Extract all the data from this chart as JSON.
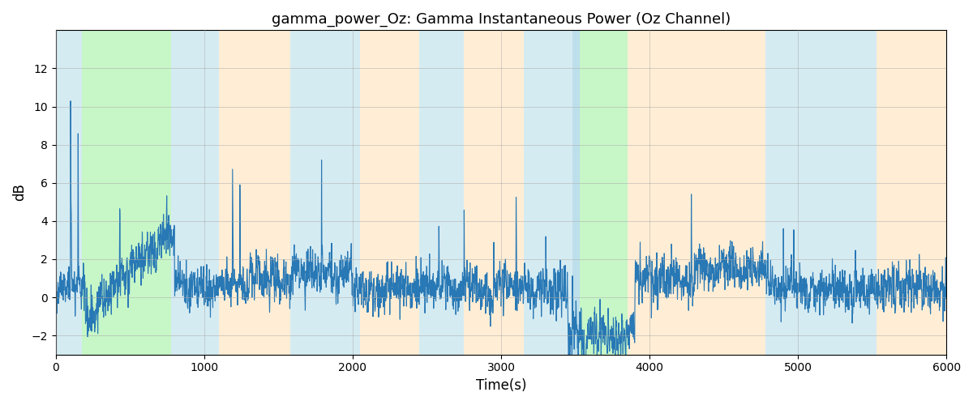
{
  "title": "gamma_power_Oz: Gamma Instantaneous Power (Oz Channel)",
  "xlabel": "Time(s)",
  "ylabel": "dB",
  "xlim": [
    0,
    6000
  ],
  "ylim": [
    -3,
    14
  ],
  "yticks": [
    -2,
    0,
    2,
    4,
    6,
    8,
    10,
    12
  ],
  "xticks": [
    0,
    1000,
    2000,
    3000,
    4000,
    5000,
    6000
  ],
  "line_color": "#2878b5",
  "line_width": 0.8,
  "background_color": "#ffffff",
  "figsize": [
    12,
    5
  ],
  "dpi": 100,
  "regions": [
    {
      "start": 0,
      "end": 175,
      "color": "#add8e6",
      "alpha": 0.5
    },
    {
      "start": 175,
      "end": 780,
      "color": "#90ee90",
      "alpha": 0.5
    },
    {
      "start": 780,
      "end": 1100,
      "color": "#add8e6",
      "alpha": 0.5
    },
    {
      "start": 1100,
      "end": 1580,
      "color": "#ffdead",
      "alpha": 0.5
    },
    {
      "start": 1580,
      "end": 2050,
      "color": "#add8e6",
      "alpha": 0.5
    },
    {
      "start": 2050,
      "end": 2450,
      "color": "#ffdead",
      "alpha": 0.5
    },
    {
      "start": 2450,
      "end": 2750,
      "color": "#add8e6",
      "alpha": 0.5
    },
    {
      "start": 2750,
      "end": 3150,
      "color": "#ffdead",
      "alpha": 0.5
    },
    {
      "start": 3150,
      "end": 3480,
      "color": "#add8e6",
      "alpha": 0.5
    },
    {
      "start": 3480,
      "end": 3530,
      "color": "#add8e6",
      "alpha": 0.8
    },
    {
      "start": 3530,
      "end": 3850,
      "color": "#90ee90",
      "alpha": 0.5
    },
    {
      "start": 3850,
      "end": 4250,
      "color": "#ffdead",
      "alpha": 0.5
    },
    {
      "start": 4250,
      "end": 4780,
      "color": "#ffdead",
      "alpha": 0.5
    },
    {
      "start": 4780,
      "end": 5150,
      "color": "#add8e6",
      "alpha": 0.5
    },
    {
      "start": 5150,
      "end": 5530,
      "color": "#add8e6",
      "alpha": 0.5
    },
    {
      "start": 5530,
      "end": 6000,
      "color": "#ffdead",
      "alpha": 0.5
    }
  ]
}
